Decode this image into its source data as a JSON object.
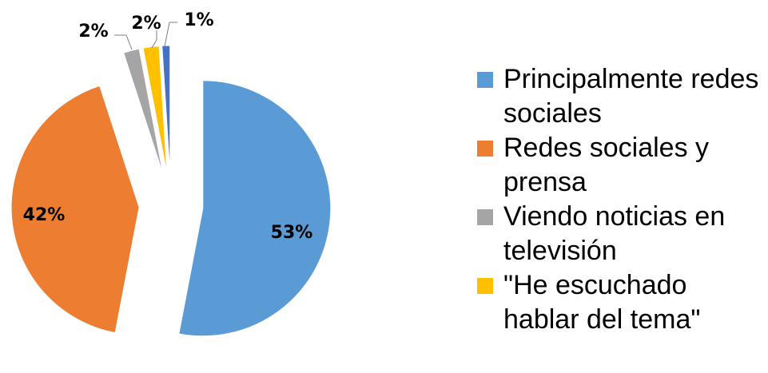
{
  "chart_data": {
    "type": "pie",
    "categories": [
      "Principalmente redes sociales",
      "Redes sociales y prensa",
      "Viendo noticias en televisión",
      "\"He escuchado hablar del tema\"",
      null
    ],
    "values": [
      53,
      42,
      2,
      2,
      1
    ],
    "value_labels": [
      "53%",
      "42%",
      "2%",
      "2%",
      "1%"
    ],
    "colors": [
      "#5b9bd5",
      "#ed7d31",
      "#a5a5a5",
      "#ffc000",
      "#4472c4"
    ],
    "legend": "right"
  }
}
